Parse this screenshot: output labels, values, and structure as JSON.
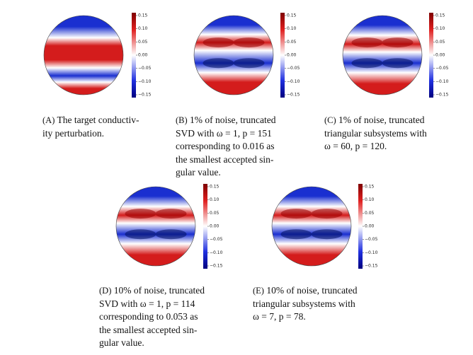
{
  "colorbar_ticks": [
    "0.15",
    "0.10",
    "0.05",
    "0.00",
    "−0.05",
    "−0.10",
    "−0.15"
  ],
  "panels": [
    {
      "label": "(A)",
      "caption": [
        " The target conductiv-",
        "ity perturbation."
      ]
    },
    {
      "label": "(B)",
      "caption": [
        " 1% of noise, truncated",
        "SVD with ω = 1, p = 151",
        "corresponding to 0.016 as",
        "the smallest accepted sin-",
        "gular value."
      ]
    },
    {
      "label": "(C)",
      "caption": [
        " 1% of noise, truncated",
        "triangular subsystems with",
        "ω = 60, p = 120."
      ]
    },
    {
      "label": "(D)",
      "caption": [
        " 10% of noise, truncated",
        "SVD with ω = 1, p = 114",
        "corresponding to 0.053 as",
        "the smallest accepted sin-",
        "gular value."
      ]
    },
    {
      "label": "(E)",
      "caption": [
        " 10% of noise, truncated",
        "triangular subsystems with",
        "ω = 7, p = 78."
      ]
    }
  ]
}
